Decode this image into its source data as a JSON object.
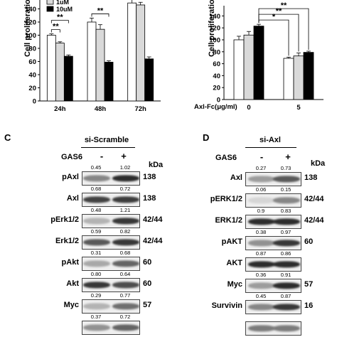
{
  "chart_a": {
    "type": "bar",
    "ylabel": "Cell proliferation (%",
    "y_ticks": [
      "0",
      "20",
      "40",
      "60",
      "80",
      "100",
      "120",
      "140"
    ],
    "ylim": [
      0,
      160
    ],
    "legend": [
      "1uM",
      "10uM"
    ],
    "categories": [
      "24h",
      "48h",
      "72h"
    ],
    "series": [
      {
        "name": "",
        "values": [
          100,
          120,
          149
        ],
        "errors": [
          2,
          6,
          5
        ],
        "color": "#ffffff"
      },
      {
        "name": "1uM",
        "values": [
          88,
          109,
          146
        ],
        "errors": [
          2,
          7,
          4
        ],
        "color": "#d9d9d9"
      },
      {
        "name": "10uM",
        "values": [
          68,
          59,
          64
        ],
        "errors": [
          2,
          2,
          3
        ],
        "color": "#000000"
      }
    ],
    "significance": [
      {
        "label": "**",
        "category": 0,
        "from_series": 0,
        "to_series": 1
      },
      {
        "label": "**",
        "category": 0,
        "from_series": 0,
        "to_series": 2
      },
      {
        "label": "**",
        "category": 1,
        "from_series": 0,
        "to_series": 2
      },
      {
        "label": "**",
        "category": 2,
        "from_series": 0,
        "to_series": 2
      }
    ]
  },
  "chart_b": {
    "type": "bar",
    "ylabel": "Cell proliferation (%",
    "y_ticks": [
      "0",
      "20",
      "40",
      "60",
      "80",
      "100",
      "120",
      "140"
    ],
    "ylim": [
      0,
      150
    ],
    "xlabel": "Axl-Fc(μg/ml)",
    "categories": [
      "0",
      "5"
    ],
    "series": [
      {
        "values": [
          100,
          69
        ],
        "errors": [
          6,
          2
        ],
        "color": "#ffffff"
      },
      {
        "values": [
          108,
          73
        ],
        "errors": [
          6,
          5
        ],
        "color": "#d9d9d9"
      },
      {
        "values": [
          123,
          79
        ],
        "errors": [
          3,
          2
        ],
        "color": "#000000"
      }
    ],
    "significance": [
      {
        "label": "*",
        "from": [
          0,
          2
        ],
        "to": [
          1,
          0
        ]
      },
      {
        "label": "**",
        "from": [
          0,
          2
        ],
        "to": [
          1,
          1
        ]
      },
      {
        "label": "**",
        "from": [
          0,
          2
        ],
        "to": [
          1,
          2
        ]
      }
    ]
  },
  "panel_c": {
    "letter": "C",
    "condition": "si-Scramble",
    "gas6": "GAS6",
    "minus": "-",
    "plus": "+",
    "kda_header": "kDa",
    "rows": [
      {
        "protein": "pAxl",
        "q1": "0.45",
        "q2": "1.02",
        "kda": "138",
        "b1": 0.45,
        "b2": 0.85
      },
      {
        "protein": "Axl",
        "q1": "0.68",
        "q2": "0.72",
        "kda": "138",
        "b1": 0.75,
        "b2": 0.78
      },
      {
        "protein": "pErk1/2",
        "q1": "0.48",
        "q2": "1.21",
        "kda": "42/44",
        "b1": 0.25,
        "b2": 0.8
      },
      {
        "protein": "Erk1/2",
        "q1": "0.59",
        "q2": "0.82",
        "kda": "42/44",
        "b1": 0.65,
        "b2": 0.8
      },
      {
        "protein": "pAkt",
        "q1": "0.31",
        "q2": "0.68",
        "kda": "60",
        "b1": 0.3,
        "b2": 0.6
      },
      {
        "protein": "Akt",
        "q1": "0.80",
        "q2": "0.64",
        "kda": "60",
        "b1": 0.8,
        "b2": 0.7
      },
      {
        "protein": "Myc",
        "q1": "0.29",
        "q2": "0.77",
        "kda": "57",
        "b1": 0.25,
        "b2": 0.55
      },
      {
        "protein": "",
        "q1": "0.37",
        "q2": "0.72",
        "kda": "",
        "b1": 0.4,
        "b2": 0.6
      }
    ]
  },
  "panel_d": {
    "letter": "D",
    "condition": "si-Axl",
    "gas6": "GAS6",
    "minus": "-",
    "plus": "+",
    "kda_header": "kDa",
    "rows": [
      {
        "protein": "Axl",
        "q1": "0.27",
        "q2": "0.73",
        "kda": "138",
        "b1": 0.35,
        "b2": 0.65
      },
      {
        "protein": "pERK1/2",
        "q1": "0.06",
        "q2": "0.15",
        "kda": "42/44",
        "b1": 0.1,
        "b2": 0.45
      },
      {
        "protein": "ERK1/2",
        "q1": "0.9",
        "q2": "0.83",
        "kda": "42/44",
        "b1": 0.85,
        "b2": 0.85
      },
      {
        "protein": "pAKT",
        "q1": "0.38",
        "q2": "0.97",
        "kda": "60",
        "b1": 0.4,
        "b2": 0.8
      },
      {
        "protein": "AKT",
        "q1": "0.87",
        "q2": "0.86",
        "kda": "",
        "b1": 0.85,
        "b2": 0.85
      },
      {
        "protein": "Myc",
        "q1": "0.36",
        "q2": "0.91",
        "kda": "57",
        "b1": 0.35,
        "b2": 0.85
      },
      {
        "protein": "Survivin",
        "q1": "0.45",
        "q2": "0.87",
        "kda": "16",
        "b1": 0.45,
        "b2": 0.8
      },
      {
        "protein": "",
        "q1": "",
        "q2": "",
        "kda": "",
        "b1": 0.5,
        "b2": 0.5
      }
    ]
  }
}
